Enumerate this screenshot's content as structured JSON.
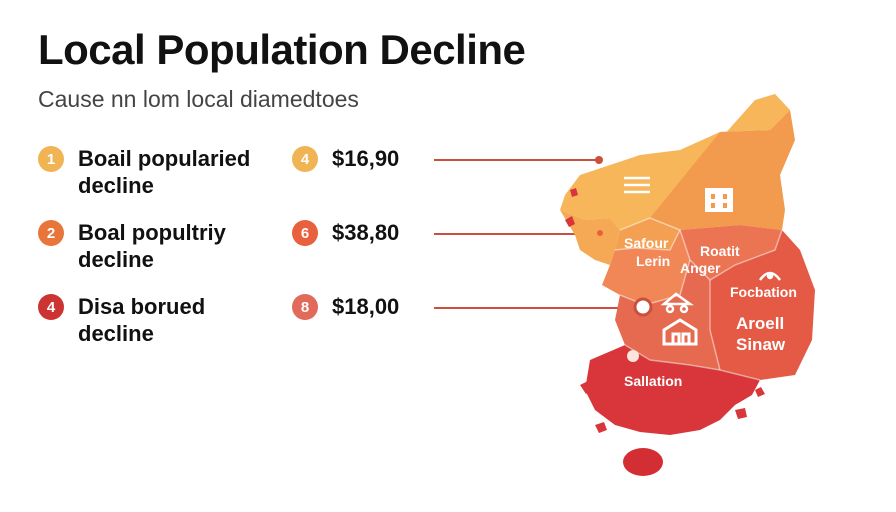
{
  "header": {
    "title": "Local Population Decline",
    "subtitle": "Cause nn lom local diamedtoes"
  },
  "items": [
    {
      "badge": "1",
      "label_line1": "Boail popularied",
      "label_line2": "decline",
      "color": "#f0b454"
    },
    {
      "badge": "2",
      "label_line1": "Boal popultriy",
      "label_line2": "decline",
      "color": "#e8763a"
    },
    {
      "badge": "4",
      "label_line1": "Disa borued",
      "label_line2": "decline",
      "color": "#cc3434"
    }
  ],
  "values": [
    {
      "badge": "4",
      "value": "$16,90",
      "color": "#f0b454"
    },
    {
      "badge": "6",
      "value": "$38,80",
      "color": "#e8603d"
    },
    {
      "badge": "8",
      "value": "$18,00",
      "color": "#e26a5a"
    }
  ],
  "map": {
    "regions": {
      "r1": "Safour",
      "r1b": "Lerin",
      "r2": "Roatit",
      "r2b": "Anger",
      "r3": "Focbation",
      "r4": "Aroell",
      "r4b": "Sinaw",
      "r5": "Sallation"
    },
    "colors": {
      "top": "#f6b659",
      "upper_right": "#f29b4e",
      "mid_left": "#f18656",
      "mid_right": "#eb7552",
      "right": "#e45a45",
      "center": "#e56a4f",
      "south": "#d8363a",
      "island": "#d42e35"
    },
    "icons": [
      "list-icon",
      "building-icon",
      "warning-icon",
      "truck-icon",
      "house-icon"
    ]
  }
}
